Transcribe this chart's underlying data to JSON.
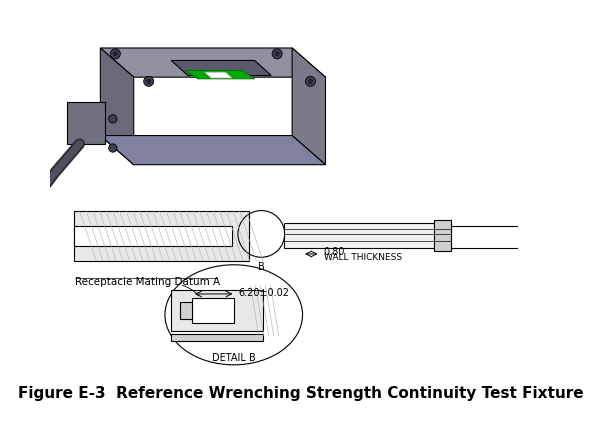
{
  "title": "Figure E-3  Reference Wrenching Strength Continuity Test Fixture",
  "title_fontsize": 11,
  "title_bold": true,
  "background_color": "#ffffff",
  "fig_width": 6.01,
  "fig_height": 4.39,
  "dpi": 100,
  "annotations": {
    "wall_thickness_value": "0.80",
    "wall_thickness_label": "WALL THICKNESS",
    "dimension_label": "6.20±0.02",
    "datum_label": "Receptacle Mating Datum A",
    "detail_label": "DETAIL B",
    "point_b": "B"
  },
  "colors": {
    "hatch": "#c8c8c8",
    "outline": "#000000",
    "dimension_line": "#000000",
    "text": "#000000",
    "green_fill": "#00aa00",
    "white_fill": "#ffffff",
    "gray_body": "#808090",
    "light_gray": "#b0b0c0",
    "dark_gray": "#505060"
  }
}
